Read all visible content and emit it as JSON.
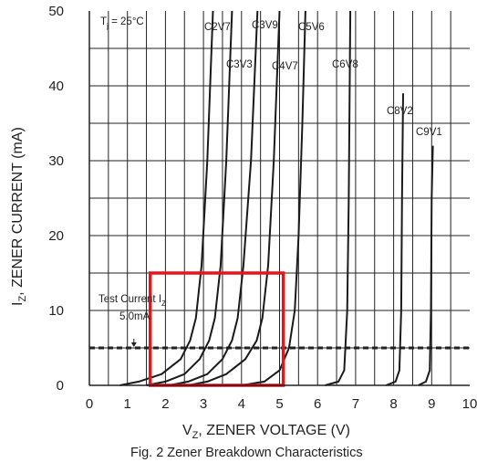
{
  "chart_data": {
    "type": "line",
    "title": "",
    "caption": "Fig. 2  Zener Breakdown Characteristics",
    "xlabel": "V",
    "xlabel_sub": "Z",
    "xlabel_rest": ", ZENER VOLTAGE (V)",
    "ylabel": "I",
    "ylabel_sub": "Z",
    "ylabel_rest": ", ZENER CURRENT (mA)",
    "xlim": [
      0,
      10
    ],
    "ylim": [
      0,
      50
    ],
    "x_ticks": [
      "0",
      "1",
      "2",
      "3",
      "4",
      "5",
      "6",
      "7",
      "8",
      "9",
      "10"
    ],
    "y_ticks": [
      "0",
      "10",
      "20",
      "30",
      "40",
      "50"
    ],
    "grid": true,
    "temperature_note": {
      "base": "T",
      "sub": "j",
      "rest": " = 25°C"
    },
    "test_current": {
      "line1_base": "Test Current I",
      "line1_sub": "Z",
      "line2": "5.0mA",
      "value": 5.0
    },
    "highlight_box": {
      "x_range": [
        1.6,
        5.1
      ],
      "y_range": [
        0,
        15
      ],
      "color": "#e8141b"
    },
    "series": [
      {
        "name": "C2V7",
        "points": [
          [
            0.8,
            0
          ],
          [
            1.3,
            0.5
          ],
          [
            1.9,
            1.5
          ],
          [
            2.4,
            3.5
          ],
          [
            2.65,
            6
          ],
          [
            2.8,
            9
          ],
          [
            2.95,
            16
          ],
          [
            3.1,
            30
          ],
          [
            3.25,
            50
          ]
        ]
      },
      {
        "name": "C3V3",
        "points": [
          [
            1.5,
            0
          ],
          [
            2.0,
            0.5
          ],
          [
            2.5,
            1.5
          ],
          [
            2.9,
            3.5
          ],
          [
            3.15,
            6
          ],
          [
            3.3,
            9
          ],
          [
            3.45,
            16
          ],
          [
            3.6,
            30
          ],
          [
            3.75,
            50
          ]
        ]
      },
      {
        "name": "C3V9",
        "points": [
          [
            2.1,
            0
          ],
          [
            2.6,
            0.5
          ],
          [
            3.1,
            1.5
          ],
          [
            3.5,
            3.5
          ],
          [
            3.75,
            6
          ],
          [
            3.9,
            9
          ],
          [
            4.05,
            16
          ],
          [
            4.25,
            30
          ],
          [
            4.42,
            50
          ]
        ]
      },
      {
        "name": "C4V7",
        "points": [
          [
            2.6,
            0
          ],
          [
            3.1,
            0.5
          ],
          [
            3.6,
            1.5
          ],
          [
            4.1,
            3.5
          ],
          [
            4.4,
            6
          ],
          [
            4.55,
            9
          ],
          [
            4.7,
            16
          ],
          [
            4.85,
            30
          ],
          [
            5.0,
            50
          ]
        ]
      },
      {
        "name": "C5V6",
        "points": [
          [
            4.0,
            0
          ],
          [
            4.6,
            0.5
          ],
          [
            5.0,
            2
          ],
          [
            5.25,
            5
          ],
          [
            5.4,
            10
          ],
          [
            5.5,
            20
          ],
          [
            5.6,
            35
          ],
          [
            5.68,
            50
          ]
        ]
      },
      {
        "name": "C6V8",
        "points": [
          [
            6.2,
            0
          ],
          [
            6.55,
            0.5
          ],
          [
            6.7,
            2
          ],
          [
            6.78,
            10
          ],
          [
            6.82,
            25
          ],
          [
            6.86,
            50
          ]
        ]
      },
      {
        "name": "C8V2",
        "points": [
          [
            7.8,
            0
          ],
          [
            8.05,
            0.5
          ],
          [
            8.15,
            2
          ],
          [
            8.2,
            10
          ],
          [
            8.22,
            25
          ],
          [
            8.25,
            39
          ]
        ]
      },
      {
        "name": "C9V1",
        "points": [
          [
            8.65,
            0
          ],
          [
            8.85,
            0.5
          ],
          [
            8.95,
            2
          ],
          [
            8.98,
            10
          ],
          [
            9.0,
            25
          ],
          [
            9.03,
            32
          ]
        ]
      }
    ]
  }
}
